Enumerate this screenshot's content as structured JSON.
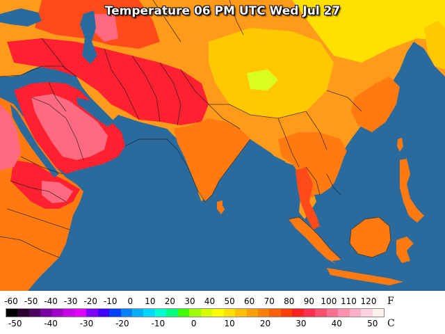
{
  "title": "Temperature 06 PM UTC Wed Jul 27",
  "colors": {
    "ocean": "#2a6a9c",
    "land_warm": "#ff9a1a",
    "land_orange": "#ff7a10",
    "land_hot": "#ff4a1a",
    "land_veryhot": "#ff2030",
    "land_pink": "#ff6a80",
    "land_yellow": "#ffc800",
    "land_green": "#b8ff20",
    "land_cool": "#ffe000"
  },
  "legend": {
    "fahrenheit_labels": [
      "-60",
      "-50",
      "-40",
      "-30",
      "-20",
      "-10",
      "0",
      "10",
      "20",
      "30",
      "40",
      "50",
      "60",
      "70",
      "80",
      "90",
      "100",
      "110",
      "120"
    ],
    "celsius_labels": [
      "-50",
      "-40",
      "-30",
      "-20",
      "-10",
      "0",
      "10",
      "20",
      "30",
      "40",
      "50"
    ],
    "unit_f": "F",
    "unit_c": "C",
    "scale_colors": [
      "#000000",
      "#2a0030",
      "#4a0060",
      "#7a00a0",
      "#a000c8",
      "#c800e8",
      "#e000ff",
      "#8000ff",
      "#4000ff",
      "#0040ff",
      "#0080ff",
      "#00b0ff",
      "#00d8ff",
      "#00ffd0",
      "#00ff80",
      "#40ff00",
      "#a0ff00",
      "#d8ff00",
      "#ffff00",
      "#ffe000",
      "#ffc000",
      "#ffa000",
      "#ff8000",
      "#ff6000",
      "#ff4000",
      "#ff2020",
      "#ff3050",
      "#ff5070",
      "#ff7090",
      "#ff90b0",
      "#ffb0c8",
      "#ffd0e0",
      "#fff0f0"
    ]
  }
}
